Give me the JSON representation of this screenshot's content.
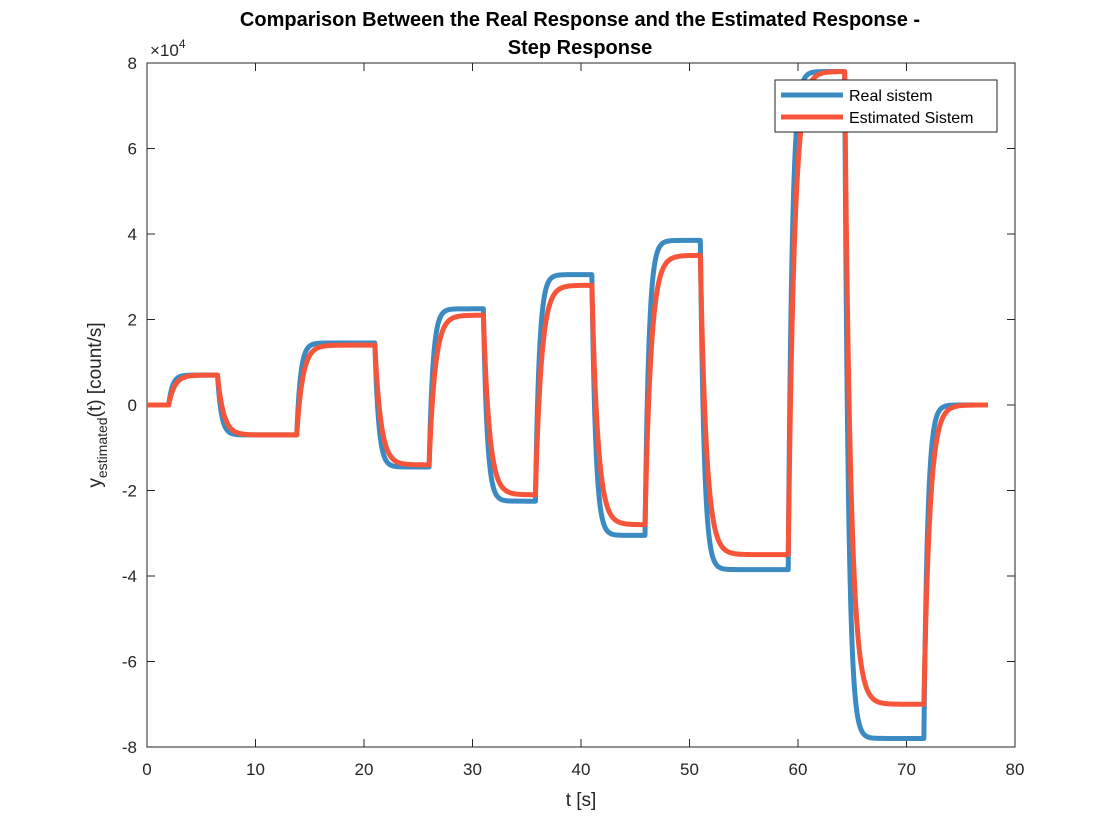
{
  "chart_data": {
    "type": "line",
    "title": [
      "Comparison Between the Real Response and the Estimated Response -",
      "Step Response"
    ],
    "xlabel": "t [s]",
    "ylabel_main": "y",
    "ylabel_sub": "estimated",
    "ylabel_rest": "(t) [count/s]",
    "exponent_prefix": "×10",
    "exponent_power": "4",
    "xlim": [
      0,
      80
    ],
    "ylim": [
      -8,
      8
    ],
    "y_scale_factor": 10000,
    "xticks": [
      0,
      10,
      20,
      30,
      40,
      50,
      60,
      70,
      80
    ],
    "xtick_labels": [
      "0",
      "10",
      "20",
      "30",
      "40",
      "50",
      "60",
      "70",
      "80"
    ],
    "yticks": [
      -8,
      -6,
      -4,
      -2,
      0,
      2,
      4,
      6,
      8
    ],
    "ytick_labels": [
      "-8",
      "-6",
      "-4",
      "-2",
      "0",
      "2",
      "4",
      "6",
      "8"
    ],
    "grid": false,
    "legend_position": "top-right",
    "steps": [
      {
        "t": 2.0,
        "real": 0.7,
        "est": 0.7
      },
      {
        "t": 6.5,
        "real": -0.7,
        "est": -0.7
      },
      {
        "t": 13.8,
        "real": 1.45,
        "est": 1.4
      },
      {
        "t": 21.0,
        "real": -1.45,
        "est": -1.4
      },
      {
        "t": 26.0,
        "real": 2.25,
        "est": 2.1
      },
      {
        "t": 31.0,
        "real": -2.25,
        "est": -2.1
      },
      {
        "t": 35.8,
        "real": 3.05,
        "est": 2.8
      },
      {
        "t": 41.0,
        "real": -3.05,
        "est": -2.8
      },
      {
        "t": 45.9,
        "real": 3.85,
        "est": 3.5
      },
      {
        "t": 51.0,
        "real": -3.85,
        "est": -3.5
      },
      {
        "t": 59.1,
        "real": 7.8,
        "est": 7.8
      },
      {
        "t": 64.3,
        "real": -7.8,
        "est": -7.0
      },
      {
        "t": 71.6,
        "real": 0.0,
        "est": 0.0
      }
    ],
    "t_end": 77.5,
    "series": [
      {
        "name": "Real sistem",
        "color": "#3B8BC2",
        "tau": 0.35
      },
      {
        "name": "Estimated Sistem",
        "color": "#F7553A",
        "tau": 0.55
      }
    ]
  }
}
